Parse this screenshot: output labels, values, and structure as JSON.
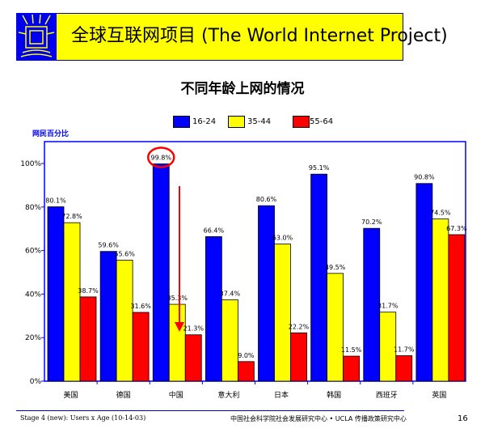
{
  "header": {
    "title": "全球互联网项目 (The World Internet Project)"
  },
  "footer": {
    "left": "Stage 4 (new): Users x Age (10-14-03)",
    "center": "中国社会科学院社会发展研究中心 • UCLA 传播政策研究中心",
    "page": "16"
  },
  "chart_data": {
    "type": "bar",
    "title": "不同年龄上网的情况",
    "ylabel": "网民百分比",
    "ylim": [
      0,
      100
    ],
    "yticks": [
      "0%",
      "20%",
      "40%",
      "60%",
      "80%",
      "100%"
    ],
    "legend_position": "top",
    "categories": [
      "美国",
      "德国",
      "中国",
      "意大利",
      "日本",
      "韩国",
      "西班牙",
      "英国"
    ],
    "series": [
      {
        "name": "16-24",
        "color": "#0000ff",
        "values": [
          80.1,
          59.6,
          99.8,
          66.4,
          80.6,
          95.1,
          70.2,
          90.8
        ],
        "labels": [
          "80.1%",
          "59.6%",
          "99.8%",
          "66.4%",
          "80.6%",
          "95.1%",
          "70.2%",
          "90.8%"
        ]
      },
      {
        "name": "35-44",
        "color": "#ffff00",
        "values": [
          72.8,
          55.6,
          35.3,
          37.4,
          63.0,
          49.5,
          31.7,
          74.5
        ],
        "labels": [
          "72.8%",
          "55.6%",
          "35.3%",
          "37.4%",
          "63.0%",
          "49.5%",
          "31.7%",
          "74.5%"
        ]
      },
      {
        "name": "55-64",
        "color": "#ff0000",
        "values": [
          38.7,
          31.6,
          21.3,
          9.0,
          22.2,
          11.5,
          11.7,
          67.3
        ],
        "labels": [
          "38.7%",
          "31.6%",
          "21.3%",
          "9.0%",
          "22.2%",
          "11.5%",
          "11.7%",
          "67.3%"
        ]
      }
    ],
    "annotation": {
      "highlight": "中国 16-24",
      "color": "#ff0000"
    }
  }
}
